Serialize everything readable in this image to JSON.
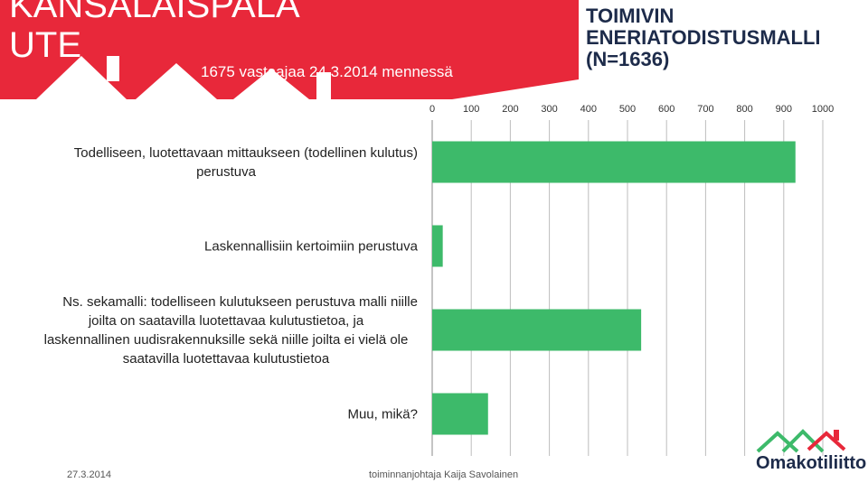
{
  "header": {
    "banner_title_line1": "KANSALAISPALA",
    "banner_title_line2": "UTE",
    "banner_subtitle": "1675 vastaajaa 24.3.2014 mennessä",
    "right_title": "TOIMIVIN ENERIATODISTUSMALLI (N=1636)"
  },
  "colors": {
    "banner": "#e8283a",
    "bar": "#3dba6a",
    "grid": "#bdbdbd",
    "logo_red": "#e8283a",
    "logo_green": "#3dba6a"
  },
  "chart_data": {
    "type": "bar",
    "orientation": "horizontal",
    "xlim": [
      0,
      1000
    ],
    "x_ticks": [
      "0",
      "100",
      "200",
      "300",
      "400",
      "500",
      "600",
      "700",
      "800",
      "900",
      "1000"
    ],
    "categories": [
      [
        "Todelliseen, luotettavaan mittaukseen (todellinen kulutus)",
        "perustuva"
      ],
      [
        "Laskennallisiin kertoimiin perustuva"
      ],
      [
        "Ns. sekamalli: todelliseen kulutukseen perustuva malli niille",
        "joilta on saatavilla luotettavaa kulutustietoa, ja",
        "laskennallinen uudisrakennuksille sekä niille joilta ei vielä ole",
        "saatavilla luotettavaa kulutustietoa"
      ],
      [
        "Muu, mikä?"
      ]
    ],
    "values": [
      930,
      27,
      535,
      143
    ],
    "grid": true
  },
  "footer": {
    "date": "27.3.2014",
    "author": "toiminnanjohtaja Kaija Savolainen",
    "logo": "Omakotiliitto"
  }
}
